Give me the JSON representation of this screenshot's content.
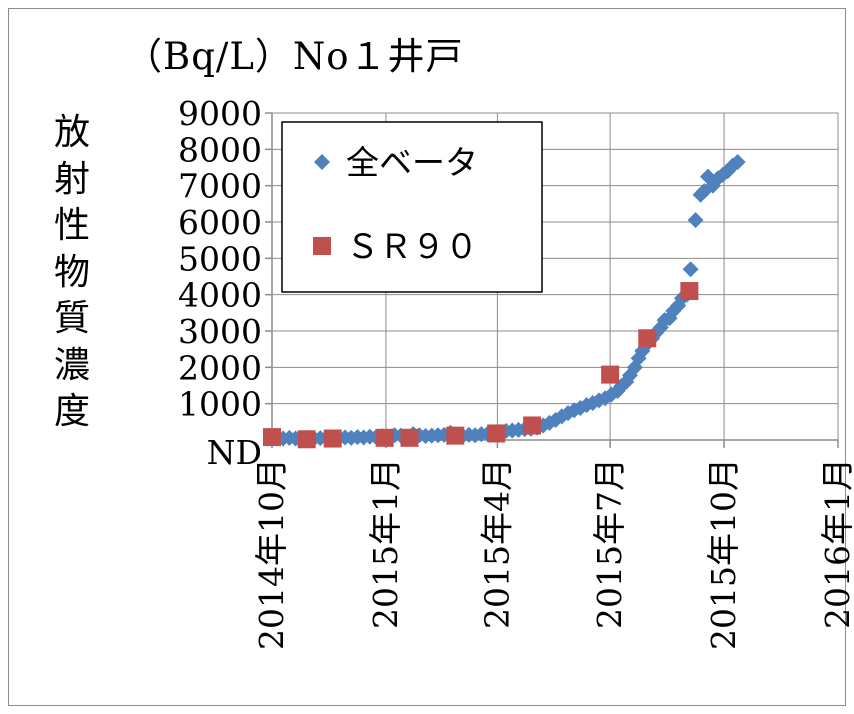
{
  "chart_data": {
    "type": "scatter",
    "title": "（Bq/L）No１井戸",
    "ylabel": "放射性物質濃度",
    "xlabel": "",
    "x_ticks": [
      "2014年10月",
      "2015年1月",
      "2015年4月",
      "2015年7月",
      "2015年10月",
      "2016年1月"
    ],
    "y_ticks": [
      "ND",
      "1000",
      "2000",
      "3000",
      "4000",
      "5000",
      "6000",
      "7000",
      "8000",
      "9000"
    ],
    "ylim": [
      0,
      9000
    ],
    "xlim": [
      "2014-10-01",
      "2016-01-01"
    ],
    "grid": true,
    "legend_position": "top-left",
    "series": [
      {
        "name": "全ベータ",
        "marker": "diamond",
        "color": "#4f81bd",
        "points": [
          [
            "2014-10-01",
            30
          ],
          [
            "2014-10-06",
            50
          ],
          [
            "2014-10-10",
            40
          ],
          [
            "2014-10-15",
            60
          ],
          [
            "2014-10-20",
            40
          ],
          [
            "2014-10-25",
            50
          ],
          [
            "2014-10-30",
            60
          ],
          [
            "2014-11-04",
            40
          ],
          [
            "2014-11-09",
            50
          ],
          [
            "2014-11-14",
            60
          ],
          [
            "2014-11-19",
            50
          ],
          [
            "2014-11-24",
            60
          ],
          [
            "2014-11-29",
            70
          ],
          [
            "2014-12-04",
            60
          ],
          [
            "2014-12-09",
            80
          ],
          [
            "2014-12-14",
            70
          ],
          [
            "2014-12-19",
            90
          ],
          [
            "2014-12-24",
            80
          ],
          [
            "2014-12-29",
            110
          ],
          [
            "2015-01-03",
            90
          ],
          [
            "2015-01-08",
            130
          ],
          [
            "2015-01-13",
            120
          ],
          [
            "2015-01-18",
            90
          ],
          [
            "2015-01-23",
            160
          ],
          [
            "2015-01-28",
            130
          ],
          [
            "2015-02-02",
            110
          ],
          [
            "2015-02-07",
            120
          ],
          [
            "2015-02-12",
            130
          ],
          [
            "2015-02-17",
            140
          ],
          [
            "2015-02-22",
            200
          ],
          [
            "2015-02-27",
            130
          ],
          [
            "2015-03-04",
            110
          ],
          [
            "2015-03-09",
            140
          ],
          [
            "2015-03-14",
            130
          ],
          [
            "2015-03-19",
            160
          ],
          [
            "2015-03-24",
            170
          ],
          [
            "2015-03-29",
            180
          ],
          [
            "2015-04-03",
            220
          ],
          [
            "2015-04-08",
            250
          ],
          [
            "2015-04-13",
            260
          ],
          [
            "2015-04-18",
            280
          ],
          [
            "2015-04-23",
            300
          ],
          [
            "2015-04-28",
            310
          ],
          [
            "2015-05-03",
            340
          ],
          [
            "2015-05-08",
            400
          ],
          [
            "2015-05-13",
            470
          ],
          [
            "2015-05-18",
            550
          ],
          [
            "2015-05-23",
            650
          ],
          [
            "2015-05-28",
            740
          ],
          [
            "2015-06-02",
            820
          ],
          [
            "2015-06-07",
            880
          ],
          [
            "2015-06-12",
            960
          ],
          [
            "2015-06-17",
            1020
          ],
          [
            "2015-06-22",
            1090
          ],
          [
            "2015-06-27",
            1150
          ],
          [
            "2015-07-02",
            1250
          ],
          [
            "2015-07-07",
            1350
          ],
          [
            "2015-07-10",
            1480
          ],
          [
            "2015-07-14",
            1600
          ],
          [
            "2015-07-17",
            1780
          ],
          [
            "2015-07-21",
            2000
          ],
          [
            "2015-07-24",
            2250
          ],
          [
            "2015-07-27",
            2450
          ],
          [
            "2015-07-31",
            2650
          ],
          [
            "2015-08-04",
            2800
          ],
          [
            "2015-08-07",
            2950
          ],
          [
            "2015-08-11",
            3100
          ],
          [
            "2015-08-14",
            3300
          ],
          [
            "2015-08-18",
            3350
          ],
          [
            "2015-08-21",
            3550
          ],
          [
            "2015-08-25",
            3700
          ],
          [
            "2015-08-28",
            3900
          ],
          [
            "2015-09-01",
            4000
          ],
          [
            "2015-09-04",
            4700
          ],
          [
            "2015-09-08",
            6050
          ],
          [
            "2015-09-12",
            6750
          ],
          [
            "2015-09-15",
            6850
          ],
          [
            "2015-09-18",
            7250
          ],
          [
            "2015-09-22",
            7000
          ],
          [
            "2015-09-26",
            7200
          ],
          [
            "2015-09-30",
            7300
          ],
          [
            "2015-10-04",
            7400
          ],
          [
            "2015-10-08",
            7550
          ],
          [
            "2015-10-12",
            7650
          ]
        ]
      },
      {
        "name": "ＳＲ９０",
        "marker": "square",
        "color": "#c0504d",
        "points": [
          [
            "2014-10-01",
            80
          ],
          [
            "2014-10-29",
            20
          ],
          [
            "2014-11-19",
            40
          ],
          [
            "2014-12-31",
            60
          ],
          [
            "2015-01-20",
            60
          ],
          [
            "2015-02-26",
            120
          ],
          [
            "2015-03-31",
            180
          ],
          [
            "2015-04-29",
            400
          ],
          [
            "2015-07-01",
            1800
          ],
          [
            "2015-07-31",
            2800
          ],
          [
            "2015-09-03",
            4100
          ]
        ]
      }
    ]
  }
}
